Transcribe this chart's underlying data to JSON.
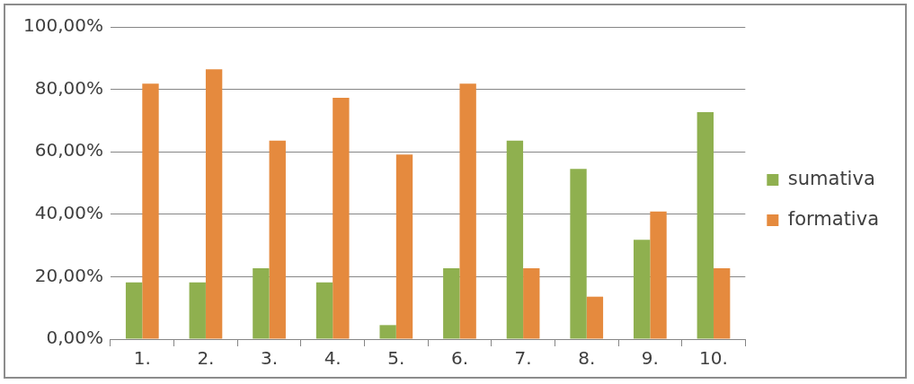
{
  "chart_data": {
    "type": "bar",
    "categories": [
      "1.",
      "2.",
      "3.",
      "4.",
      "5.",
      "6.",
      "7.",
      "8.",
      "9.",
      "10."
    ],
    "series": [
      {
        "name": "sumativa",
        "color": "#8fb04f",
        "values": [
          18.2,
          18.2,
          22.7,
          18.2,
          4.5,
          22.7,
          63.6,
          54.5,
          31.8,
          72.7
        ]
      },
      {
        "name": "formativa",
        "color": "#e58a3e",
        "values": [
          81.8,
          86.4,
          63.6,
          77.3,
          59.1,
          81.8,
          22.7,
          13.6,
          40.9,
          22.7
        ]
      }
    ],
    "ylim": [
      0,
      100
    ],
    "yticks": [
      {
        "value": 0,
        "label": "0,00%"
      },
      {
        "value": 20,
        "label": "20,00%"
      },
      {
        "value": 40,
        "label": "40,00%"
      },
      {
        "value": 60,
        "label": "60,00%"
      },
      {
        "value": 80,
        "label": "80,00%"
      },
      {
        "value": 100,
        "label": "100,00%"
      }
    ],
    "grid": "y",
    "legend": "right"
  }
}
